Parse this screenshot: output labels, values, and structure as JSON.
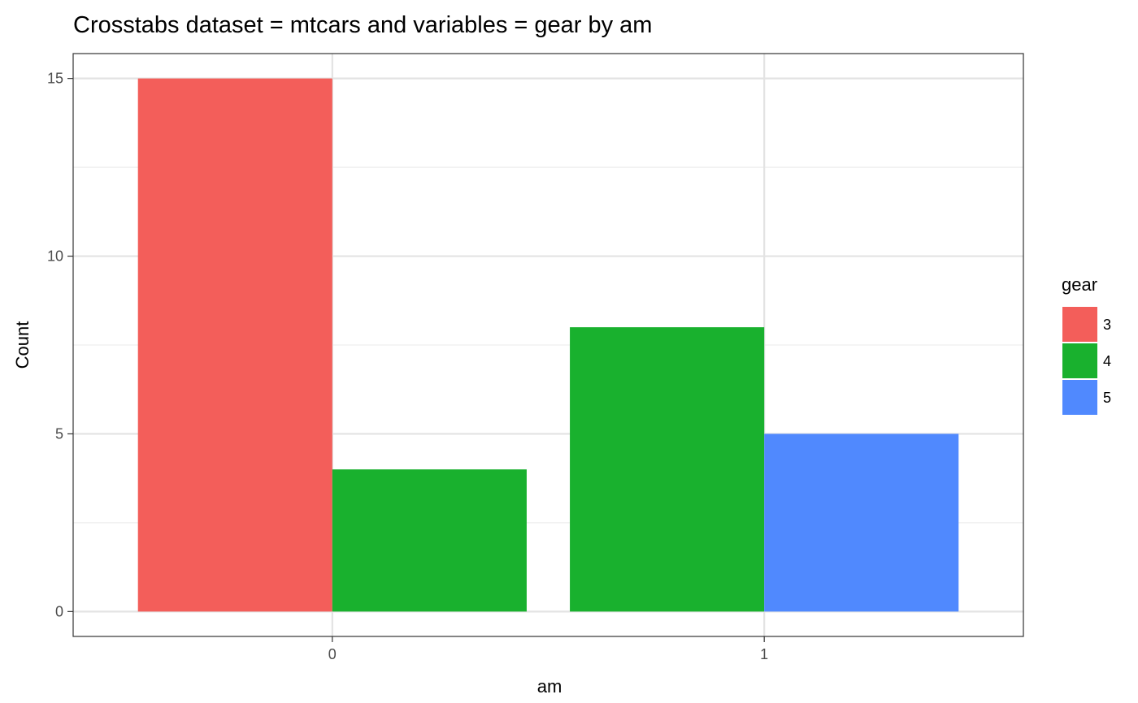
{
  "chart_data": {
    "type": "bar",
    "title": "Crosstabs dataset = mtcars and variables = gear by am",
    "xlabel": "am",
    "ylabel": "Count",
    "categories": [
      "0",
      "1"
    ],
    "ylim": [
      -0.7,
      15.7
    ],
    "yticks": [
      0,
      5,
      10,
      15
    ],
    "grid": true,
    "legend": {
      "title": "gear",
      "placement": "right",
      "entries": [
        {
          "label": "3",
          "color": "#F35E5A"
        },
        {
          "label": "4",
          "color": "#19B12E"
        },
        {
          "label": "5",
          "color": "#5089FE"
        }
      ]
    },
    "bars": [
      {
        "category": "0",
        "group": "3",
        "value": 15,
        "color": "#F35E5A"
      },
      {
        "category": "0",
        "group": "4",
        "value": 4,
        "color": "#19B12E"
      },
      {
        "category": "1",
        "group": "4",
        "value": 8,
        "color": "#19B12E"
      },
      {
        "category": "1",
        "group": "5",
        "value": 5,
        "color": "#5089FE"
      }
    ]
  }
}
